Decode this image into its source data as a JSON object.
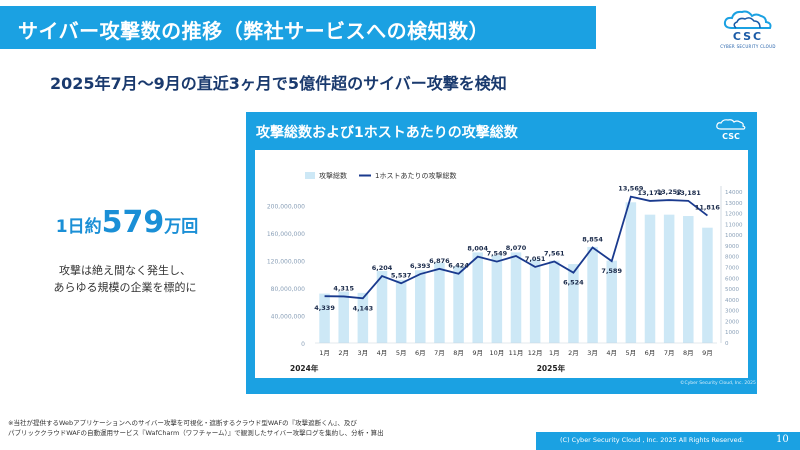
{
  "header": {
    "title": "サイバー攻撃数の推移（弊社サービスへの検知数）",
    "logo_text": "CSC",
    "logo_sub": "CYBER SECURITY CLOUD"
  },
  "subtitle": "2025年7月〜9月の直近3ヶ月で5億件超のサイバー攻撃を検知",
  "stat": {
    "prefix": "1日約",
    "number": "579",
    "suffix": "万回",
    "desc_line1": "攻撃は絶え間なく発生し、",
    "desc_line2": "あらゆる規模の企業を標的に"
  },
  "panel": {
    "title": "攻撃総数および1ホストあたりの攻撃総数",
    "logo": "CSC",
    "credit": "©Cyber Security Cloud, Inc. 2025"
  },
  "chart_data": {
    "type": "bar",
    "title": "攻撃総数および1ホストあたりの攻撃総数",
    "legend": [
      "攻撃総数",
      "1ホストあたりの攻撃総数"
    ],
    "legend_position": "top-left",
    "categories": [
      "1月",
      "2月",
      "3月",
      "4月",
      "5月",
      "6月",
      "7月",
      "8月",
      "9月",
      "10月",
      "11月",
      "12月",
      "1月",
      "2月",
      "3月",
      "4月",
      "5月",
      "6月",
      "7月",
      "8月",
      "9月"
    ],
    "year_labels": [
      "2024年",
      "2025年"
    ],
    "series": [
      {
        "name": "攻撃総数",
        "type": "bar",
        "axis": "left",
        "color": "#cde8f6",
        "values": [
          72000000,
          75000000,
          73000000,
          105000000,
          92000000,
          106000000,
          117000000,
          112000000,
          132000000,
          128000000,
          132000000,
          122000000,
          120000000,
          115000000,
          140000000,
          120000000,
          205000000,
          187000000,
          187000000,
          185000000,
          168000000
        ]
      },
      {
        "name": "1ホストあたりの攻撃総数",
        "type": "line",
        "axis": "right",
        "color": "#1a3a8e",
        "values": [
          4339,
          4315,
          4143,
          6204,
          5537,
          6393,
          6876,
          6424,
          8004,
          7549,
          8070,
          7051,
          7561,
          6524,
          8854,
          7589,
          13569,
          13172,
          13252,
          13181,
          11816
        ],
        "labels": [
          "4,339",
          "4,315",
          "4,143",
          "6,204",
          "5,537",
          "6,393",
          "6,876",
          "6,424",
          "8,004",
          "7,549",
          "8,070",
          "7,051",
          "7,561",
          "6,524",
          "8,854",
          "7,589",
          "13,569",
          "13,172",
          "13,252",
          "13,181",
          "11,816"
        ]
      }
    ],
    "yleft": {
      "ticks": [
        0,
        40000000,
        80000000,
        120000000,
        160000000,
        200000000
      ],
      "labels": [
        "0",
        "40,000,000",
        "80,000,000",
        "120,000,000",
        "160,000,000",
        "200,000,000"
      ],
      "range": [
        0,
        220000000
      ]
    },
    "yright": {
      "ticks": [
        0,
        1000,
        2000,
        3000,
        4000,
        5000,
        6000,
        7000,
        8000,
        9000,
        10000,
        11000,
        12000,
        13000,
        14000
      ],
      "range": [
        0,
        14000
      ]
    }
  },
  "footnote": {
    "line1": "※当社が提供するWebアプリケーションへのサイバー攻撃を可視化・遮断するクラウド型WAFの『攻撃遮断くん』、及び",
    "line2": "パブリッククラウドWAFの自動運用サービス『WafCharm（ワフチャーム）』で観測したサイバー攻撃ログを集約し、分析・算出"
  },
  "footer": {
    "copyright": "(C) Cyber Security Cloud , Inc.  2025  All Rights Reserved.",
    "page_number": "10"
  }
}
